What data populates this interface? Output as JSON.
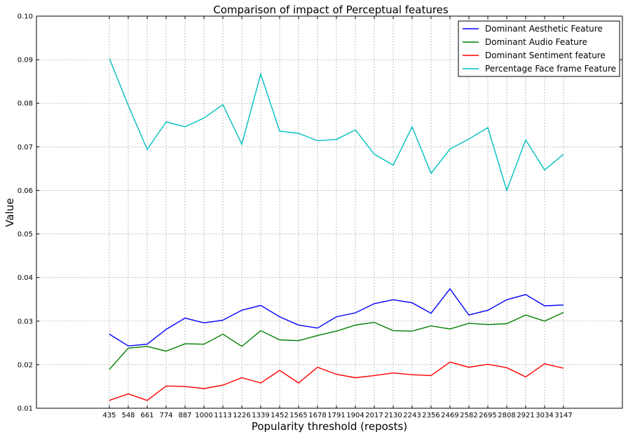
{
  "chart_data": {
    "type": "line",
    "title": "Comparison of impact of Perceptual features",
    "xlabel": "Popularity threshold (reposts)",
    "ylabel": "Value",
    "ylim": [
      0.01,
      0.1
    ],
    "yticks": [
      "0.01",
      "0.02",
      "0.03",
      "0.04",
      "0.05",
      "0.06",
      "0.07",
      "0.08",
      "0.09",
      "0.10"
    ],
    "grid": true,
    "legend_position": "top-right",
    "categories": [
      "435",
      "548",
      "661",
      "774",
      "887",
      "1000",
      "1113",
      "1226",
      "1339",
      "1452",
      "1565",
      "1678",
      "1791",
      "1904",
      "2017",
      "2130",
      "2243",
      "2356",
      "2469",
      "2582",
      "2695",
      "2808",
      "2921",
      "3034",
      "3147"
    ],
    "series": [
      {
        "name": "Dominant Aesthetic Feature",
        "color": "#0000ff",
        "values": [
          0.027,
          0.0243,
          0.0247,
          0.0281,
          0.0307,
          0.0296,
          0.0302,
          0.0325,
          0.0336,
          0.031,
          0.0291,
          0.0284,
          0.031,
          0.0319,
          0.034,
          0.0349,
          0.0342,
          0.0318,
          0.0374,
          0.0314,
          0.0325,
          0.0349,
          0.0361,
          0.0335,
          0.0337
        ]
      },
      {
        "name": "Dominant Audio Feature",
        "color": "#008000",
        "values": [
          0.0189,
          0.0238,
          0.0242,
          0.0231,
          0.0248,
          0.0247,
          0.027,
          0.0242,
          0.0278,
          0.0257,
          0.0255,
          0.0267,
          0.0277,
          0.0291,
          0.0297,
          0.0278,
          0.0277,
          0.0289,
          0.0282,
          0.0295,
          0.0292,
          0.0294,
          0.0314,
          0.03,
          0.032
        ]
      },
      {
        "name": "Dominant Sentiment feature",
        "color": "#ff0000",
        "values": [
          0.0118,
          0.0133,
          0.0118,
          0.0151,
          0.015,
          0.0145,
          0.0153,
          0.017,
          0.0158,
          0.0187,
          0.0158,
          0.0194,
          0.0178,
          0.017,
          0.0175,
          0.0181,
          0.0177,
          0.0175,
          0.0206,
          0.0194,
          0.0201,
          0.0193,
          0.0172,
          0.0202,
          0.0192
        ]
      },
      {
        "name": "Percentage Face frame Feature",
        "color": "#00bfbf",
        "values": [
          0.0903,
          0.0795,
          0.0694,
          0.0757,
          0.0746,
          0.0766,
          0.0797,
          0.0706,
          0.0867,
          0.0736,
          0.0731,
          0.0714,
          0.0717,
          0.0739,
          0.0683,
          0.0658,
          0.0746,
          0.0639,
          0.0695,
          0.0718,
          0.0744,
          0.06,
          0.0716,
          0.0647,
          0.0683
        ]
      }
    ]
  }
}
